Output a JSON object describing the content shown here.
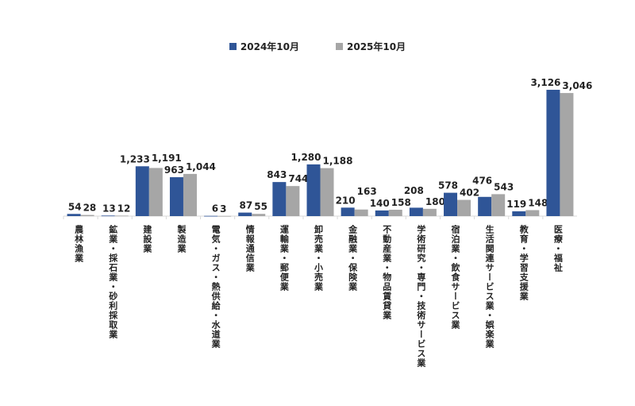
{
  "chart_data": {
    "type": "bar",
    "title": "",
    "xlabel": "",
    "ylabel": "",
    "ylim": [
      0,
      3500
    ],
    "grid": false,
    "legend_position": "top-center",
    "categories": [
      "農林漁業",
      "鉱業・採石業・砂利採取業",
      "建設業",
      "製造業",
      "電気・ガス・熱供給・水道業",
      "情報通信業",
      "運輸業・郵便業",
      "卸売業・小売業",
      "金融業・保険業",
      "不動産業・物品賃貸業",
      "学術研究・専門・技術サービス業",
      "宿泊業・飲食サービス業",
      "生活関連サービス業・娯楽業",
      "教育・学習支援業",
      "医療・福祉"
    ],
    "series": [
      {
        "name": "2024年10月",
        "color": "#2f5597",
        "values": [
          54,
          13,
          1233,
          963,
          6,
          87,
          843,
          1280,
          210,
          140,
          208,
          578,
          476,
          119,
          3126
        ]
      },
      {
        "name": "2025年10月",
        "color": "#a6a6a6",
        "values": [
          28,
          12,
          1191,
          1044,
          3,
          55,
          744,
          1188,
          163,
          158,
          180,
          402,
          543,
          148,
          3046
        ]
      }
    ]
  }
}
